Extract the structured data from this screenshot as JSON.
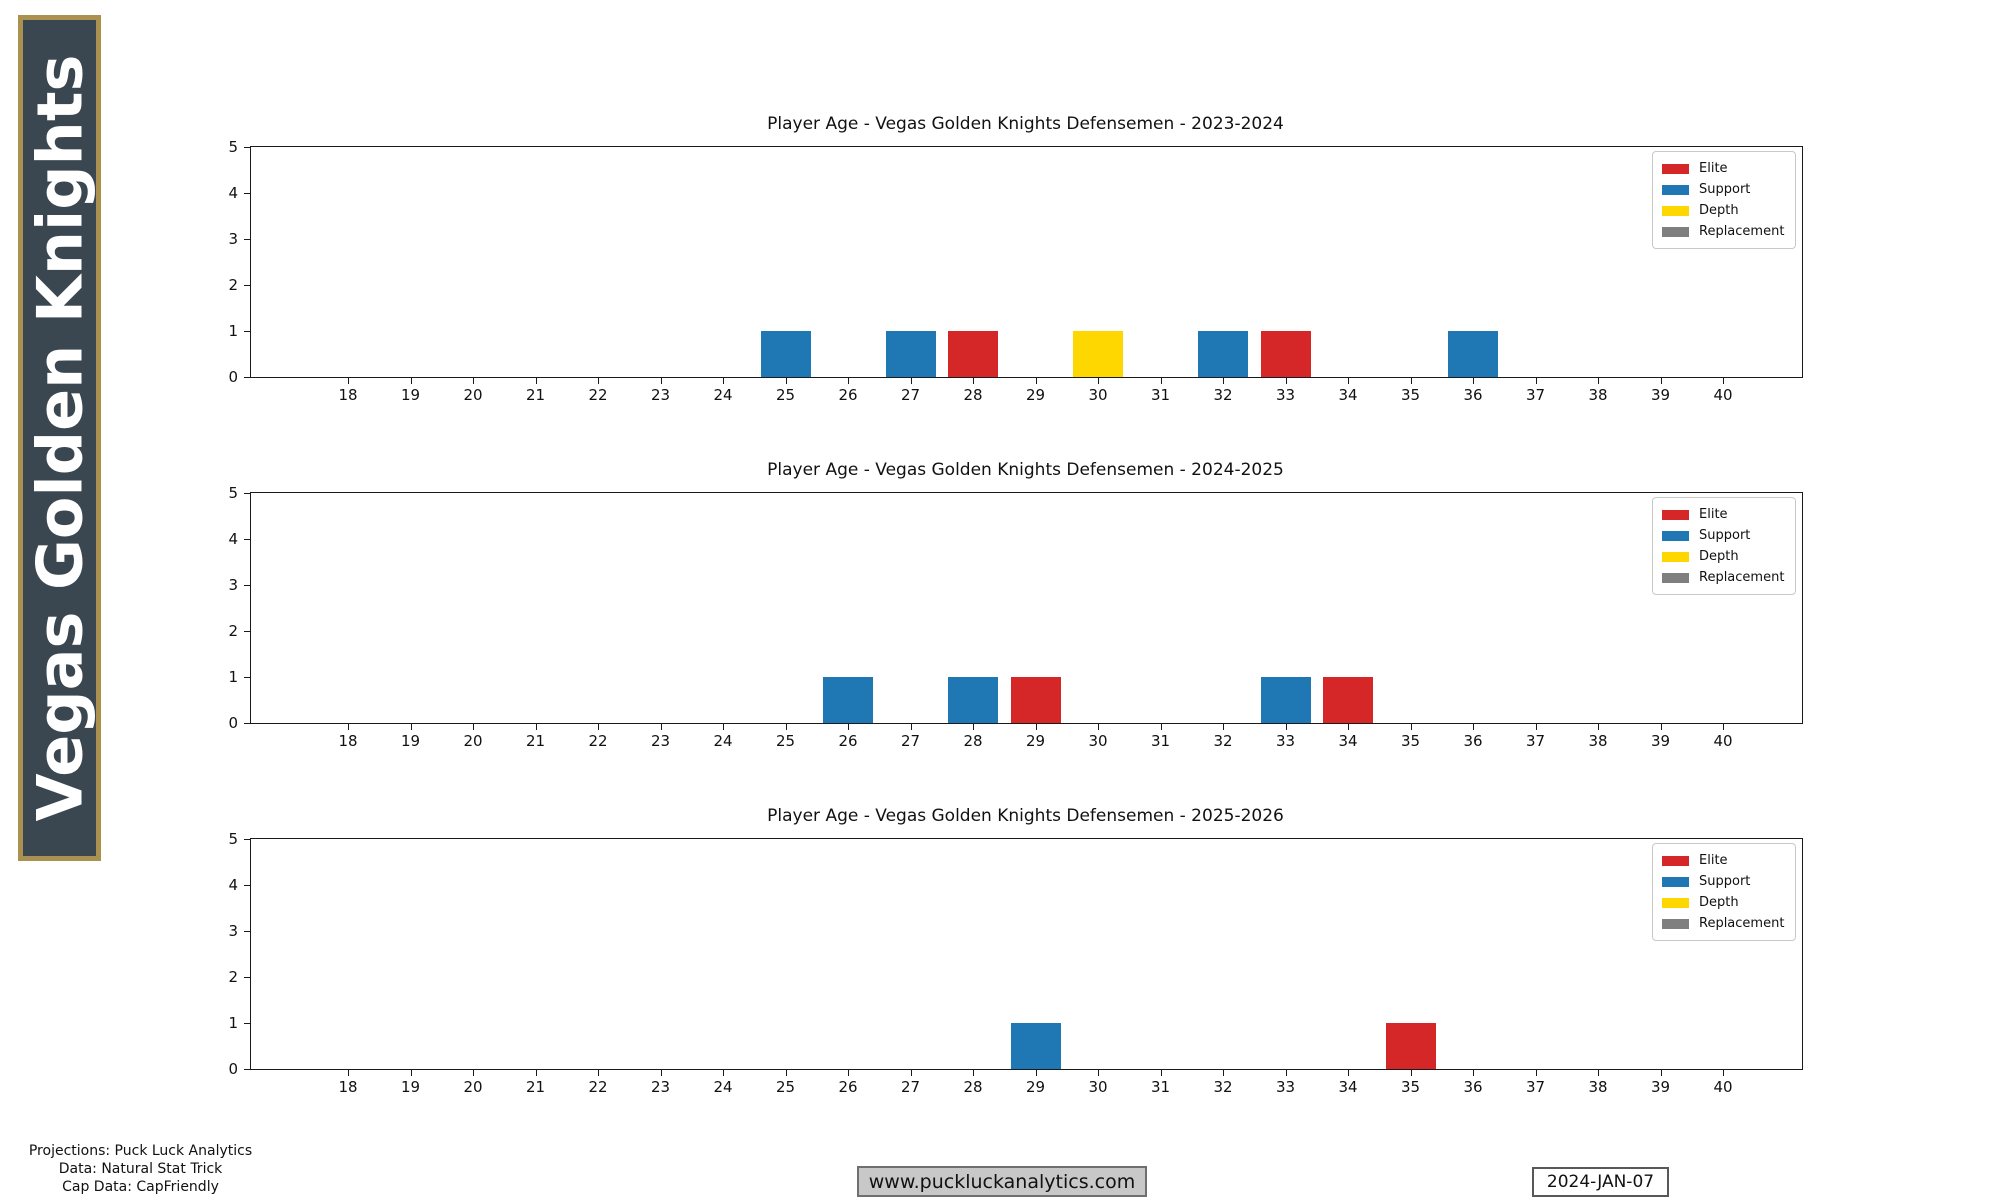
{
  "sidebar": {
    "title": "Vegas Golden Knights",
    "bg_color": "#3a4750",
    "border_color": "#ab9150"
  },
  "tier_colors": {
    "Elite": "#d62728",
    "Support": "#1f77b4",
    "Depth": "#ffd700",
    "Replacement": "#7f7f7f"
  },
  "legend_entries": [
    {
      "label": "Elite",
      "color": "#d62728"
    },
    {
      "label": "Support",
      "color": "#1f77b4"
    },
    {
      "label": "Depth",
      "color": "#ffd700"
    },
    {
      "label": "Replacement",
      "color": "#7f7f7f"
    }
  ],
  "chart_data": [
    {
      "type": "bar",
      "title": "Player Age - Vegas Golden Knights Defensemen - 2023-2024",
      "xlabel": "",
      "ylabel": "",
      "x_ticks": [
        18,
        19,
        20,
        21,
        22,
        23,
        24,
        25,
        26,
        27,
        28,
        29,
        30,
        31,
        32,
        33,
        34,
        35,
        36,
        37,
        38,
        39,
        40
      ],
      "y_ticks": [
        0,
        1,
        2,
        3,
        4,
        5
      ],
      "xlim": [
        16.4,
        41.3
      ],
      "ylim": [
        0,
        5
      ],
      "grid": false,
      "legend_position": "upper right",
      "bars": [
        {
          "age": 25,
          "count": 1,
          "tier": "Support"
        },
        {
          "age": 27,
          "count": 1,
          "tier": "Support"
        },
        {
          "age": 28,
          "count": 1,
          "tier": "Elite"
        },
        {
          "age": 30,
          "count": 1,
          "tier": "Depth"
        },
        {
          "age": 32,
          "count": 1,
          "tier": "Support"
        },
        {
          "age": 33,
          "count": 1,
          "tier": "Elite"
        },
        {
          "age": 36,
          "count": 1,
          "tier": "Support"
        }
      ]
    },
    {
      "type": "bar",
      "title": "Player Age - Vegas Golden Knights Defensemen - 2024-2025",
      "xlabel": "",
      "ylabel": "",
      "x_ticks": [
        18,
        19,
        20,
        21,
        22,
        23,
        24,
        25,
        26,
        27,
        28,
        29,
        30,
        31,
        32,
        33,
        34,
        35,
        36,
        37,
        38,
        39,
        40
      ],
      "y_ticks": [
        0,
        1,
        2,
        3,
        4,
        5
      ],
      "xlim": [
        16.4,
        41.3
      ],
      "ylim": [
        0,
        5
      ],
      "grid": false,
      "legend_position": "upper right",
      "bars": [
        {
          "age": 26,
          "count": 1,
          "tier": "Support"
        },
        {
          "age": 28,
          "count": 1,
          "tier": "Support"
        },
        {
          "age": 29,
          "count": 1,
          "tier": "Elite"
        },
        {
          "age": 33,
          "count": 1,
          "tier": "Support"
        },
        {
          "age": 34,
          "count": 1,
          "tier": "Elite"
        }
      ]
    },
    {
      "type": "bar",
      "title": "Player Age - Vegas Golden Knights Defensemen - 2025-2026",
      "xlabel": "",
      "ylabel": "",
      "x_ticks": [
        18,
        19,
        20,
        21,
        22,
        23,
        24,
        25,
        26,
        27,
        28,
        29,
        30,
        31,
        32,
        33,
        34,
        35,
        36,
        37,
        38,
        39,
        40
      ],
      "y_ticks": [
        0,
        1,
        2,
        3,
        4,
        5
      ],
      "xlim": [
        16.4,
        41.3
      ],
      "ylim": [
        0,
        5
      ],
      "grid": false,
      "legend_position": "upper right",
      "bars": [
        {
          "age": 29,
          "count": 1,
          "tier": "Support"
        },
        {
          "age": 35,
          "count": 1,
          "tier": "Elite"
        }
      ]
    }
  ],
  "footer": {
    "lines": [
      "Projections: Puck Luck Analytics",
      "Data: Natural Stat Trick",
      "Cap Data: CapFriendly"
    ],
    "website": "www.puckluckanalytics.com",
    "date": "2024-JAN-07"
  }
}
